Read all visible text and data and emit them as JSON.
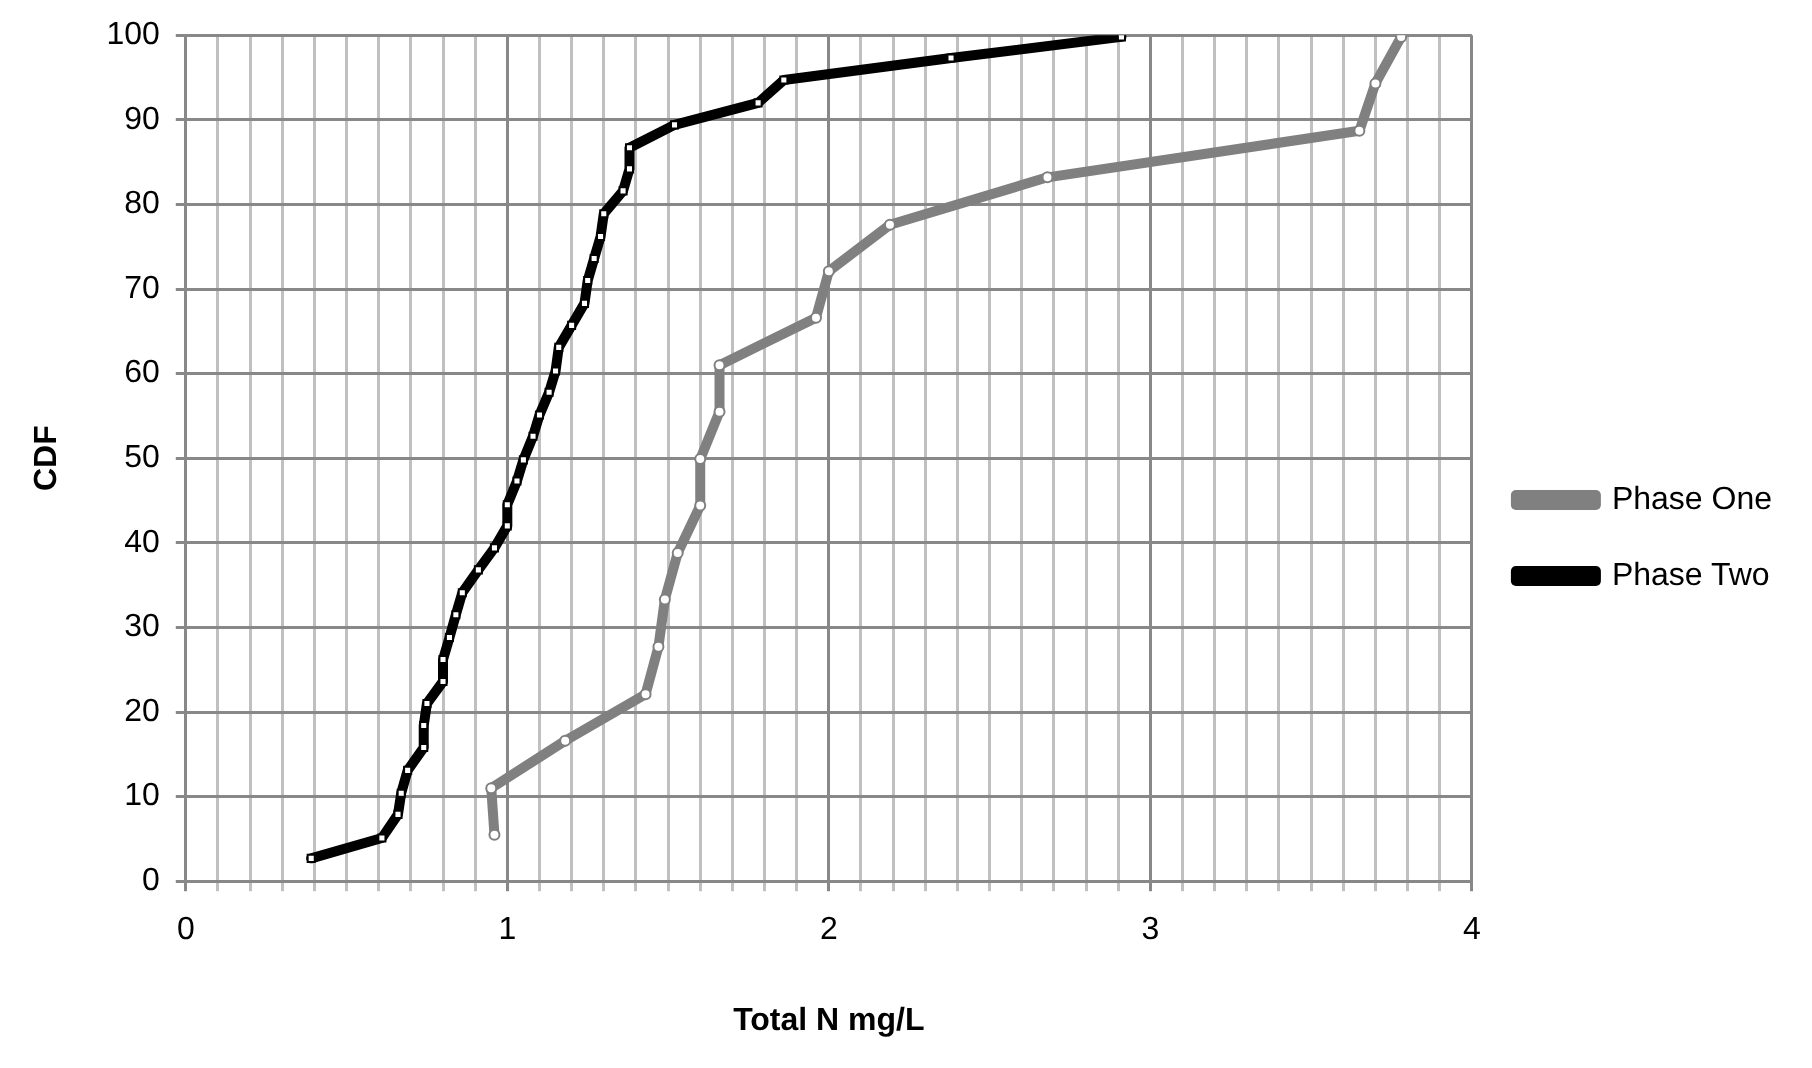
{
  "chart_data": {
    "type": "line",
    "xlabel": "Total N mg/L",
    "ylabel": "CDF",
    "xlim": [
      0,
      4
    ],
    "ylim": [
      0,
      100
    ],
    "xticks": [
      0,
      {
        "value": 0.1,
        "label": null
      },
      {
        "value": 0.2,
        "label": null
      },
      {
        "value": 0.3,
        "label": null
      },
      {
        "value": 0.4,
        "label": null
      },
      {
        "value": 0.5,
        "label": null
      },
      {
        "value": 0.6,
        "label": null
      },
      {
        "value": 0.7,
        "label": null
      },
      {
        "value": 0.8,
        "label": null
      },
      {
        "value": 0.9,
        "label": null
      },
      1,
      {
        "value": 1.1,
        "label": null
      },
      {
        "value": 1.2,
        "label": null
      },
      {
        "value": 1.3,
        "label": null
      },
      {
        "value": 1.4,
        "label": null
      },
      {
        "value": 1.5,
        "label": null
      },
      {
        "value": 1.6,
        "label": null
      },
      {
        "value": 1.7,
        "label": null
      },
      {
        "value": 1.8,
        "label": null
      },
      {
        "value": 1.9,
        "label": null
      },
      2,
      {
        "value": 2.1,
        "label": null
      },
      {
        "value": 2.2,
        "label": null
      },
      {
        "value": 2.3,
        "label": null
      },
      {
        "value": 2.4,
        "label": null
      },
      {
        "value": 2.5,
        "label": null
      },
      {
        "value": 2.6,
        "label": null
      },
      {
        "value": 2.7,
        "label": null
      },
      {
        "value": 2.8,
        "label": null
      },
      {
        "value": 2.9,
        "label": null
      },
      3,
      {
        "value": 3.1,
        "label": null
      },
      {
        "value": 3.2,
        "label": null
      },
      {
        "value": 3.3,
        "label": null
      },
      {
        "value": 3.4,
        "label": null
      },
      {
        "value": 3.5,
        "label": null
      },
      {
        "value": 3.6,
        "label": null
      },
      {
        "value": 3.7,
        "label": null
      },
      {
        "value": 3.8,
        "label": null
      },
      {
        "value": 3.9,
        "label": null
      },
      4
    ],
    "yticks": [
      0,
      10,
      20,
      30,
      40,
      50,
      60,
      70,
      80,
      90,
      100
    ],
    "grid": true,
    "legend": "right",
    "line_style": "solid",
    "series": [
      {
        "name": "Phase One",
        "color": "#808080",
        "marker": "circle",
        "x": [
          0.96,
          0.95,
          1.18,
          1.43,
          1.47,
          1.49,
          1.53,
          1.6,
          1.6,
          1.66,
          1.66,
          1.96,
          2.0,
          2.19,
          2.68,
          3.65,
          3.7,
          3.78
        ],
        "values": [
          5.5,
          11,
          16.6,
          22.1,
          27.7,
          33.3,
          38.8,
          44.4,
          49.9,
          55.5,
          61,
          66.6,
          72.1,
          77.6,
          83.2,
          88.7,
          94.3,
          99.8
        ]
      },
      {
        "name": "Phase Two",
        "color": "#000000",
        "marker": "square",
        "x": [
          0.39,
          0.61,
          0.66,
          0.67,
          0.69,
          0.74,
          0.74,
          0.75,
          0.8,
          0.8,
          0.82,
          0.84,
          0.86,
          0.91,
          0.96,
          1.0,
          1.0,
          1.03,
          1.05,
          1.08,
          1.1,
          1.13,
          1.15,
          1.16,
          1.2,
          1.24,
          1.25,
          1.27,
          1.29,
          1.3,
          1.36,
          1.38,
          1.38,
          1.52,
          1.78,
          1.86,
          2.38,
          2.91
        ],
        "values": [
          2.7,
          5.1,
          7.9,
          10.4,
          13.1,
          15.8,
          18.4,
          21,
          23.6,
          26.2,
          28.8,
          31.5,
          34.1,
          36.8,
          39.4,
          42,
          44.5,
          47.3,
          49.8,
          52.6,
          55.1,
          57.8,
          60.3,
          63.1,
          65.7,
          68.3,
          71,
          73.6,
          76.2,
          78.9,
          81.6,
          84.2,
          86.7,
          89.4,
          92,
          94.7,
          97.3,
          99.8
        ]
      }
    ]
  }
}
